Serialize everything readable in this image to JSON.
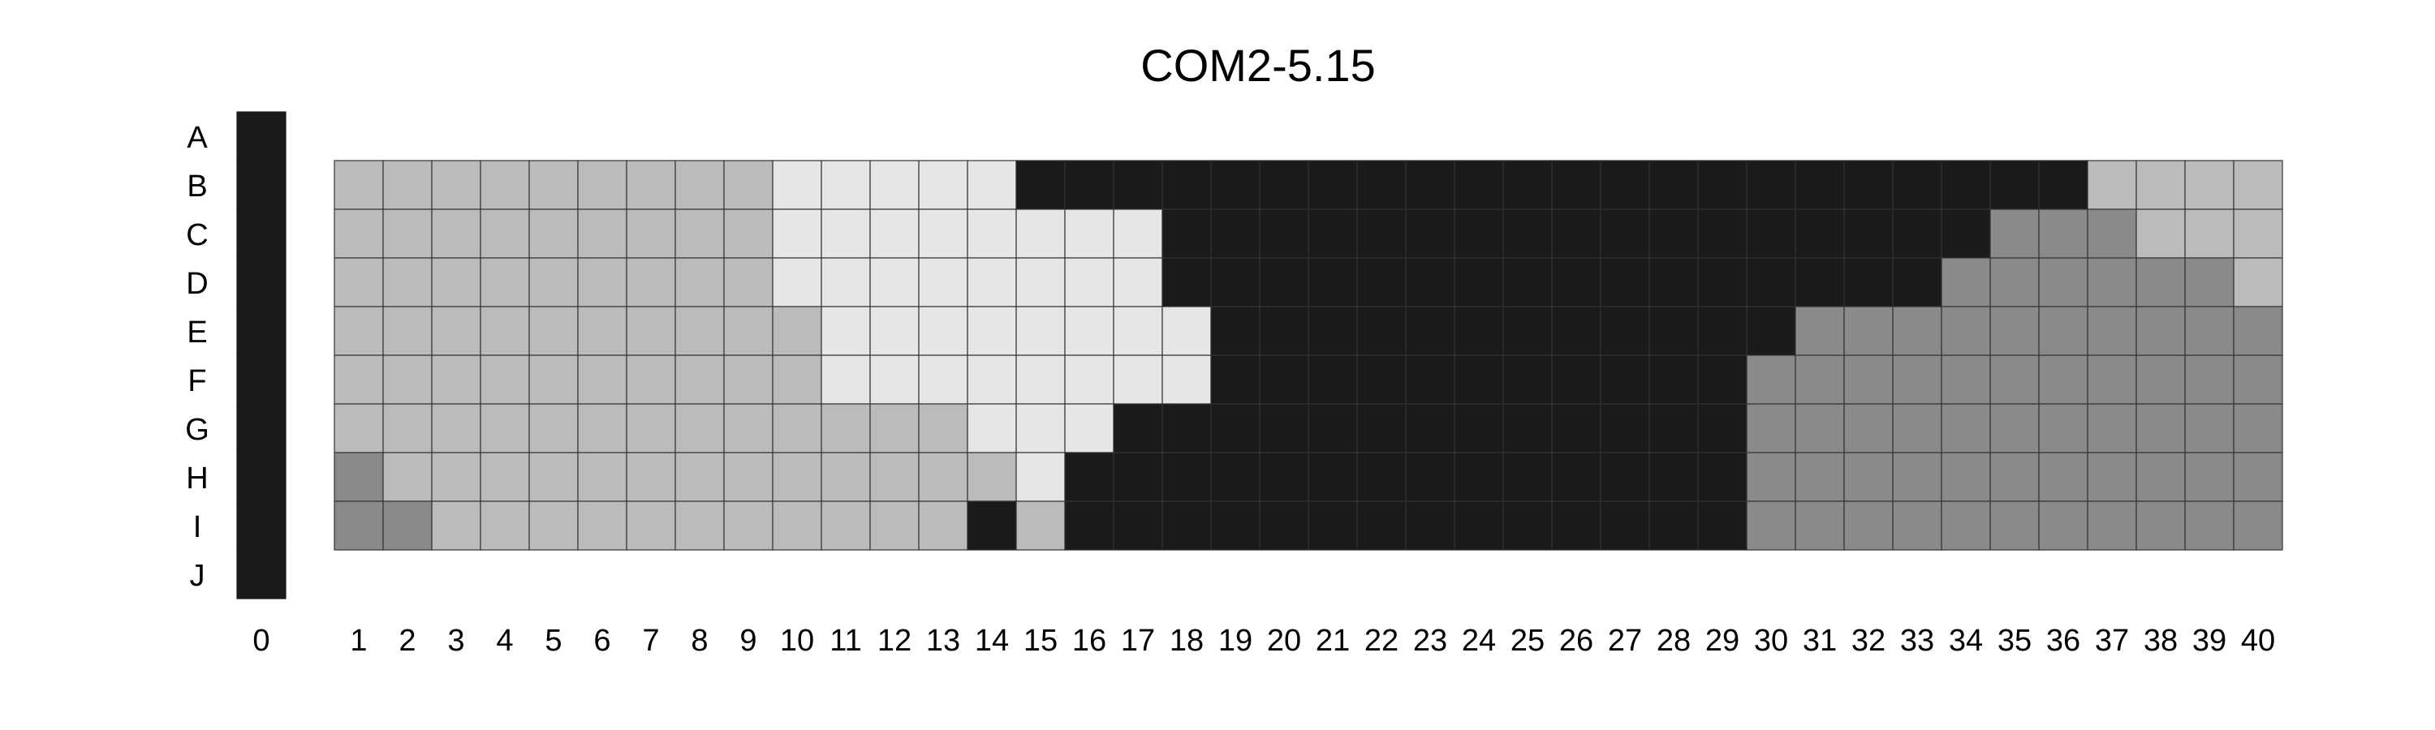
{
  "chart_data": {
    "type": "heatmap",
    "title": "COM2-5.15",
    "row_labels": [
      "A",
      "B",
      "C",
      "D",
      "E",
      "F",
      "G",
      "H",
      "I",
      "J"
    ],
    "column_labels": [
      "0",
      "1",
      "2",
      "3",
      "4",
      "5",
      "6",
      "7",
      "8",
      "9",
      "10",
      "11",
      "12",
      "13",
      "14",
      "15",
      "16",
      "17",
      "18",
      "19",
      "20",
      "21",
      "22",
      "23",
      "24",
      "25",
      "26",
      "27",
      "28",
      "29",
      "30",
      "31",
      "32",
      "33",
      "34",
      "35",
      "36",
      "37",
      "38",
      "39",
      "40"
    ],
    "levels": {
      "black": "#1a1a1a",
      "dark_gray": "#8a8a8a",
      "light_gray": "#bbbbbb",
      "very_light_gray": "#e6e6e6"
    },
    "reference_column": {
      "column": "0",
      "rows": [
        "A",
        "B",
        "C",
        "D",
        "E",
        "F",
        "G",
        "H",
        "I",
        "J"
      ],
      "level": "black"
    },
    "rows": [
      {
        "row": "B",
        "runs": [
          [
            1,
            9,
            "light_gray"
          ],
          [
            10,
            14,
            "very_light_gray"
          ],
          [
            15,
            36,
            "black"
          ],
          [
            37,
            40,
            "light_gray"
          ]
        ]
      },
      {
        "row": "C",
        "runs": [
          [
            1,
            9,
            "light_gray"
          ],
          [
            10,
            17,
            "very_light_gray"
          ],
          [
            18,
            34,
            "black"
          ],
          [
            35,
            37,
            "dark_gray"
          ],
          [
            38,
            40,
            "light_gray"
          ]
        ]
      },
      {
        "row": "D",
        "runs": [
          [
            1,
            9,
            "light_gray"
          ],
          [
            10,
            17,
            "very_light_gray"
          ],
          [
            18,
            33,
            "black"
          ],
          [
            34,
            39,
            "dark_gray"
          ],
          [
            40,
            40,
            "light_gray"
          ]
        ]
      },
      {
        "row": "E",
        "runs": [
          [
            1,
            10,
            "light_gray"
          ],
          [
            11,
            18,
            "very_light_gray"
          ],
          [
            19,
            30,
            "black"
          ],
          [
            31,
            40,
            "dark_gray"
          ]
        ]
      },
      {
        "row": "F",
        "runs": [
          [
            1,
            10,
            "light_gray"
          ],
          [
            11,
            18,
            "very_light_gray"
          ],
          [
            19,
            29,
            "black"
          ],
          [
            30,
            40,
            "dark_gray"
          ]
        ]
      },
      {
        "row": "G",
        "runs": [
          [
            1,
            13,
            "light_gray"
          ],
          [
            14,
            16,
            "very_light_gray"
          ],
          [
            17,
            29,
            "black"
          ],
          [
            30,
            40,
            "dark_gray"
          ]
        ]
      },
      {
        "row": "H",
        "runs": [
          [
            1,
            1,
            "dark_gray"
          ],
          [
            2,
            14,
            "light_gray"
          ],
          [
            15,
            15,
            "very_light_gray"
          ],
          [
            16,
            29,
            "black"
          ],
          [
            30,
            40,
            "dark_gray"
          ]
        ]
      },
      {
        "row": "I",
        "runs": [
          [
            1,
            2,
            "dark_gray"
          ],
          [
            3,
            13,
            "light_gray"
          ],
          [
            14,
            14,
            "black"
          ],
          [
            15,
            15,
            "light_gray"
          ],
          [
            16,
            29,
            "black"
          ],
          [
            30,
            40,
            "dark_gray"
          ]
        ]
      }
    ],
    "grid": true,
    "legend": "none"
  }
}
